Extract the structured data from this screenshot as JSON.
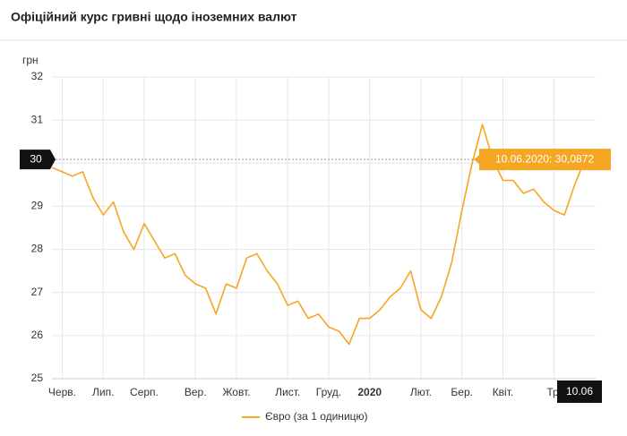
{
  "chart_data": {
    "type": "line",
    "title": "Офіційний курс гривні щодо іноземних валют",
    "y_unit": "грн",
    "categories": [
      null,
      "Черв.",
      null,
      null,
      null,
      "Лип.",
      null,
      null,
      null,
      "Серп.",
      null,
      null,
      null,
      null,
      "Вер.",
      null,
      null,
      null,
      "Жовт.",
      null,
      null,
      null,
      null,
      "Лист.",
      null,
      null,
      null,
      "Груд.",
      null,
      null,
      null,
      "2020",
      null,
      null,
      null,
      null,
      "Лют.",
      null,
      null,
      null,
      "Бер.",
      null,
      null,
      null,
      "Квіт.",
      null,
      null,
      null,
      null,
      "Тр.",
      null,
      null,
      null
    ],
    "series": [
      {
        "name": "Євро (за 1 одиницю)",
        "color": "#f5a623",
        "values": [
          29.9,
          29.8,
          29.7,
          29.8,
          29.2,
          28.8,
          29.1,
          28.4,
          28.0,
          28.6,
          28.2,
          27.8,
          27.9,
          27.4,
          27.2,
          27.1,
          26.5,
          27.2,
          27.1,
          27.8,
          27.9,
          27.5,
          27.2,
          26.7,
          26.8,
          26.4,
          26.5,
          26.2,
          26.1,
          25.8,
          26.4,
          26.4,
          26.6,
          26.9,
          27.1,
          27.5,
          26.6,
          26.4,
          26.9,
          27.7,
          28.9,
          30.0,
          30.9,
          30.1,
          29.6,
          29.6,
          29.3,
          29.4,
          29.1,
          28.9,
          28.8,
          29.5,
          30.0872
        ]
      }
    ],
    "ylim": [
      25,
      32
    ],
    "yticks": [
      25,
      26,
      27,
      28,
      29,
      30,
      31,
      32
    ],
    "grid": true,
    "crosshair": {
      "value": 30.0872,
      "label": "30"
    },
    "tooltip": "10.06.2020: 30,0872",
    "x_marker": "10.06"
  }
}
